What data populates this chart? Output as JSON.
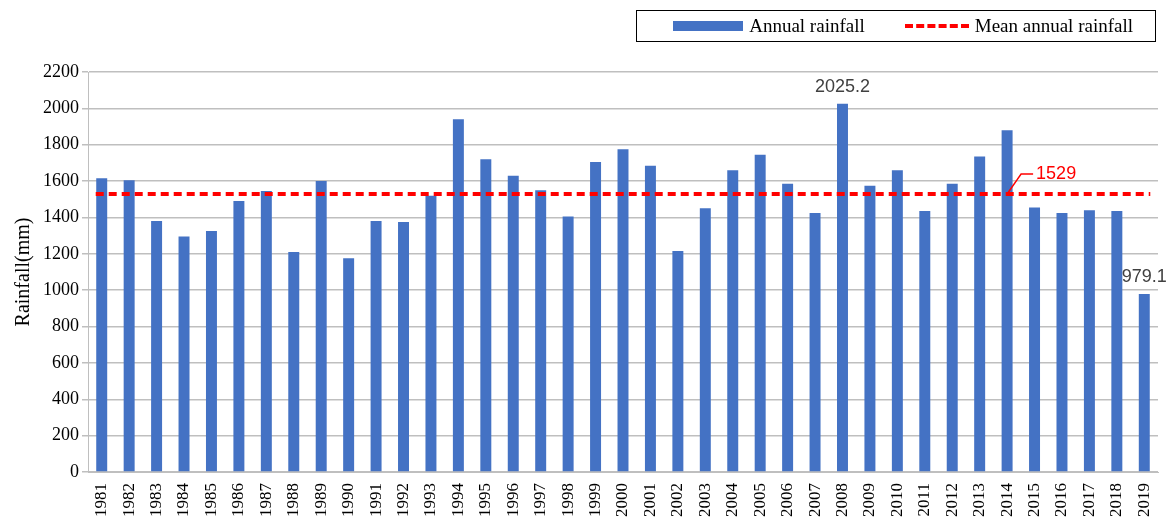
{
  "chart_data": {
    "type": "bar",
    "categories": [
      "1981",
      "1982",
      "1983",
      "1984",
      "1985",
      "1986",
      "1987",
      "1988",
      "1989",
      "1990",
      "1991",
      "1992",
      "1993",
      "1994",
      "1995",
      "1996",
      "1997",
      "1998",
      "1999",
      "2000",
      "2001",
      "2002",
      "2003",
      "2004",
      "2005",
      "2006",
      "2007",
      "2008",
      "2009",
      "2010",
      "2011",
      "2012",
      "2013",
      "2014",
      "2015",
      "2016",
      "2017",
      "2018",
      "2019"
    ],
    "series": [
      {
        "name": "Annual rainfall",
        "color": "#4472c4",
        "values": [
          1615,
          1605,
          1380,
          1295,
          1325,
          1490,
          1545,
          1210,
          1600,
          1175,
          1380,
          1375,
          1520,
          1940,
          1720,
          1630,
          1550,
          1405,
          1705,
          1775,
          1685,
          1215,
          1450,
          1660,
          1745,
          1585,
          1425,
          2025.2,
          1575,
          1660,
          1435,
          1585,
          1735,
          1880,
          1455,
          1425,
          1440,
          1435,
          979.1
        ],
        "value_labels": [
          null,
          null,
          null,
          null,
          null,
          null,
          null,
          null,
          null,
          null,
          null,
          null,
          null,
          null,
          null,
          null,
          null,
          null,
          null,
          null,
          null,
          null,
          null,
          null,
          null,
          null,
          null,
          "2025.2",
          null,
          null,
          null,
          null,
          null,
          null,
          null,
          null,
          null,
          null,
          "979.1"
        ]
      }
    ],
    "ylabel": "Rainfall(mm)",
    "ylim": [
      0,
      2200
    ],
    "yticks": [
      0,
      200,
      400,
      600,
      800,
      1000,
      1200,
      1400,
      1600,
      1800,
      2000,
      2200
    ],
    "ref_lines": [
      {
        "axis": "y",
        "value": 1529,
        "label": "Mean annual rainfall",
        "color": "#ff0000",
        "line_style": "dashed"
      }
    ],
    "annotations": [
      {
        "text": "1529",
        "x": "2014",
        "y": 1529
      }
    ],
    "grid": "y",
    "legend": "top right"
  }
}
